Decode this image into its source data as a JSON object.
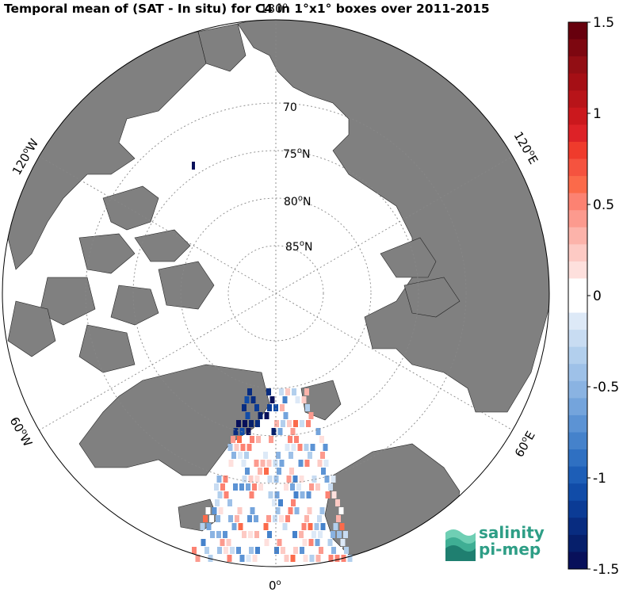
{
  "title": "Temporal mean of (SAT - In situ) for C4 in 1°x1° boxes over 2011-2015",
  "map": {
    "projection": "north polar stereographic",
    "land_color": "#808080",
    "ocean_color": "#ffffff",
    "latitude_labels": [
      "70",
      "75",
      "80",
      "85"
    ],
    "latitude_suffix": "N",
    "degree_symbol": "o",
    "longitude_labels": {
      "top": "180",
      "left_upper": "120",
      "left_upper_dir": "W",
      "left_lower": "60",
      "left_lower_dir": "W",
      "right_upper": "120",
      "right_upper_dir": "E",
      "right_lower": "60",
      "right_lower_dir": "E",
      "bottom": "0"
    }
  },
  "colorbar": {
    "min": -1.5,
    "max": 1.5,
    "tick_labels": [
      "1.5",
      "1",
      "0.5",
      "0",
      "-0.5",
      "-1",
      "-1.5"
    ],
    "colors_top_to_bottom": [
      "#67000d",
      "#7d0710",
      "#920e14",
      "#a50f15",
      "#b81419",
      "#cb181d",
      "#dd2227",
      "#ef3b2c",
      "#f5533f",
      "#fb6a4a",
      "#fc8272",
      "#fc9a8e",
      "#fcb3aa",
      "#fdcac4",
      "#fee0dd",
      "#ffffff",
      "#ffffff",
      "#dde9f7",
      "#c8dcf2",
      "#b2cfed",
      "#9ec1e8",
      "#8ab3e2",
      "#74a4dc",
      "#5c93d4",
      "#4582cb",
      "#2f70c2",
      "#1d5eb7",
      "#114ca8",
      "#0b3b95",
      "#082c80",
      "#061f6b",
      "#08105a"
    ]
  },
  "logo": {
    "line1": "salinity",
    "line2": "pi-mep"
  }
}
